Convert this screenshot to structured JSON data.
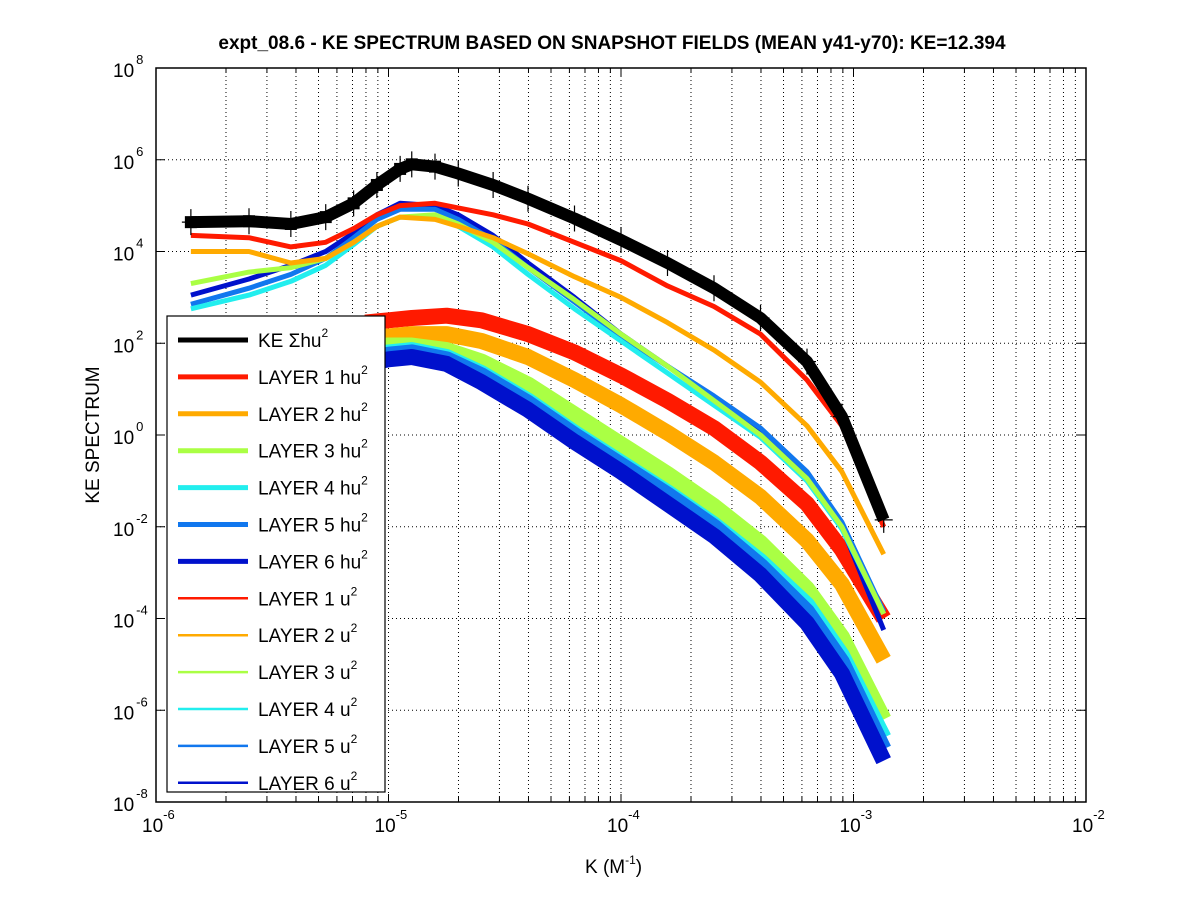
{
  "chart_data": {
    "type": "line",
    "title": "expt_08.6 - KE SPECTRUM BASED ON SNAPSHOT FIELDS (MEAN y41-y70): KE=12.394",
    "xlabel": "K  (M",
    "xlabel_sup": "-1",
    "xlabel_end": ")",
    "ylabel": "KE SPECTRUM",
    "xscale": "log",
    "yscale": "log",
    "xlim": [
      1e-06,
      0.01
    ],
    "ylim": [
      1e-08,
      100000000.0
    ],
    "grid": true,
    "legend_position": "lower-left",
    "x_ticks": [
      {
        "base": "10",
        "exp": "-6",
        "value": -6
      },
      {
        "base": "10",
        "exp": "-5",
        "value": -5
      },
      {
        "base": "10",
        "exp": "-4",
        "value": -4
      },
      {
        "base": "10",
        "exp": "-3",
        "value": -3
      },
      {
        "base": "10",
        "exp": "-2",
        "value": -2
      }
    ],
    "y_ticks": [
      {
        "base": "10",
        "exp": "-8",
        "value": -8
      },
      {
        "base": "10",
        "exp": "-6",
        "value": -6
      },
      {
        "base": "10",
        "exp": "-4",
        "value": -4
      },
      {
        "base": "10",
        "exp": "-2",
        "value": -2
      },
      {
        "base": "10",
        "exp": "0",
        "value": 0
      },
      {
        "base": "10",
        "exp": "2",
        "value": 2
      },
      {
        "base": "10",
        "exp": "4",
        "value": 4
      },
      {
        "base": "10",
        "exp": "6",
        "value": 6
      },
      {
        "base": "10",
        "exp": "8",
        "value": 8
      }
    ],
    "value_encoding": "points are [log10(K), log10(spectrum)]",
    "series": [
      {
        "name": "KE Σhu",
        "sup": "2",
        "color": "#000000",
        "width": "thick",
        "markers": "square+plus",
        "points": [
          [
            -5.85,
            4.64
          ],
          [
            -5.6,
            4.66
          ],
          [
            -5.42,
            4.6
          ],
          [
            -5.27,
            4.75
          ],
          [
            -5.15,
            5.05
          ],
          [
            -5.05,
            5.45
          ],
          [
            -4.95,
            5.8
          ],
          [
            -4.9,
            5.9
          ],
          [
            -4.8,
            5.85
          ],
          [
            -4.7,
            5.7
          ],
          [
            -4.55,
            5.45
          ],
          [
            -4.4,
            5.15
          ],
          [
            -4.2,
            4.72
          ],
          [
            -4.0,
            4.25
          ],
          [
            -3.8,
            3.75
          ],
          [
            -3.6,
            3.2
          ],
          [
            -3.4,
            2.55
          ],
          [
            -3.2,
            1.6
          ],
          [
            -3.05,
            0.4
          ],
          [
            -2.87,
            -1.85
          ]
        ]
      },
      {
        "name": "LAYER 1 hu",
        "sup": "2",
        "color": "#ff1a00",
        "width": "thick",
        "points": [
          [
            -5.85,
            4.35
          ],
          [
            -5.6,
            4.3
          ],
          [
            -5.42,
            4.1
          ],
          [
            -5.27,
            4.2
          ],
          [
            -5.15,
            4.5
          ],
          [
            -5.05,
            4.8
          ],
          [
            -4.95,
            5.0
          ],
          [
            -4.8,
            5.05
          ],
          [
            -4.7,
            4.95
          ],
          [
            -4.55,
            4.8
          ],
          [
            -4.4,
            4.6
          ],
          [
            -4.2,
            4.2
          ],
          [
            -4.0,
            3.8
          ],
          [
            -3.8,
            3.25
          ],
          [
            -3.6,
            2.8
          ],
          [
            -3.4,
            2.2
          ],
          [
            -3.2,
            1.2
          ],
          [
            -3.05,
            0.2
          ],
          [
            -2.87,
            -2.0
          ]
        ]
      },
      {
        "name": "LAYER 2 hu",
        "sup": "2",
        "color": "#ffaa00",
        "width": "thick",
        "points": [
          [
            -5.85,
            4.0
          ],
          [
            -5.6,
            4.0
          ],
          [
            -5.42,
            3.75
          ],
          [
            -5.27,
            3.85
          ],
          [
            -5.15,
            4.2
          ],
          [
            -5.05,
            4.55
          ],
          [
            -4.95,
            4.75
          ],
          [
            -4.8,
            4.7
          ],
          [
            -4.7,
            4.55
          ],
          [
            -4.55,
            4.3
          ],
          [
            -4.4,
            3.95
          ],
          [
            -4.2,
            3.45
          ],
          [
            -4.0,
            3.0
          ],
          [
            -3.8,
            2.45
          ],
          [
            -3.6,
            1.85
          ],
          [
            -3.4,
            1.15
          ],
          [
            -3.2,
            0.2
          ],
          [
            -3.05,
            -0.8
          ],
          [
            -2.87,
            -2.6
          ]
        ]
      },
      {
        "name": "LAYER 3 hu",
        "sup": "2",
        "color": "#aaff44",
        "width": "thick",
        "points": [
          [
            -5.85,
            3.3
          ],
          [
            -5.6,
            3.55
          ],
          [
            -5.42,
            3.65
          ],
          [
            -5.27,
            3.85
          ],
          [
            -5.15,
            4.2
          ],
          [
            -5.05,
            4.55
          ],
          [
            -4.95,
            4.75
          ],
          [
            -4.8,
            4.8
          ],
          [
            -4.7,
            4.6
          ],
          [
            -4.55,
            4.2
          ],
          [
            -4.4,
            3.65
          ],
          [
            -4.2,
            2.95
          ],
          [
            -4.0,
            2.2
          ],
          [
            -3.8,
            1.5
          ],
          [
            -3.6,
            0.75
          ],
          [
            -3.4,
            0.0
          ],
          [
            -3.2,
            -0.95
          ],
          [
            -3.05,
            -2.0
          ],
          [
            -2.87,
            -3.9
          ]
        ]
      },
      {
        "name": "LAYER 4 hu",
        "sup": "2",
        "color": "#22eeee",
        "width": "thick",
        "points": [
          [
            -5.85,
            2.75
          ],
          [
            -5.6,
            3.05
          ],
          [
            -5.42,
            3.35
          ],
          [
            -5.27,
            3.7
          ],
          [
            -5.15,
            4.15
          ],
          [
            -5.05,
            4.55
          ],
          [
            -4.95,
            4.75
          ],
          [
            -4.8,
            4.75
          ],
          [
            -4.7,
            4.55
          ],
          [
            -4.55,
            4.1
          ],
          [
            -4.4,
            3.5
          ],
          [
            -4.2,
            2.75
          ],
          [
            -4.0,
            2.05
          ],
          [
            -3.8,
            1.35
          ],
          [
            -3.6,
            0.65
          ],
          [
            -3.4,
            -0.05
          ],
          [
            -3.2,
            -1.0
          ],
          [
            -3.05,
            -2.05
          ],
          [
            -2.87,
            -3.9
          ]
        ]
      },
      {
        "name": "LAYER 5 hu",
        "sup": "2",
        "color": "#1177ee",
        "width": "thick",
        "points": [
          [
            -5.85,
            2.85
          ],
          [
            -5.6,
            3.2
          ],
          [
            -5.42,
            3.5
          ],
          [
            -5.27,
            3.85
          ],
          [
            -5.15,
            4.3
          ],
          [
            -5.05,
            4.7
          ],
          [
            -4.95,
            4.92
          ],
          [
            -4.8,
            4.92
          ],
          [
            -4.7,
            4.7
          ],
          [
            -4.55,
            4.25
          ],
          [
            -4.4,
            3.65
          ],
          [
            -4.2,
            2.9
          ],
          [
            -4.0,
            2.15
          ],
          [
            -3.8,
            1.5
          ],
          [
            -3.6,
            0.85
          ],
          [
            -3.4,
            0.15
          ],
          [
            -3.2,
            -0.8
          ],
          [
            -3.05,
            -1.9
          ],
          [
            -2.87,
            -3.85
          ]
        ]
      },
      {
        "name": "LAYER 6 hu",
        "sup": "2",
        "color": "#0011cc",
        "width": "thick",
        "points": [
          [
            -5.85,
            3.05
          ],
          [
            -5.6,
            3.4
          ],
          [
            -5.42,
            3.7
          ],
          [
            -5.27,
            4.0
          ],
          [
            -5.15,
            4.4
          ],
          [
            -5.05,
            4.8
          ],
          [
            -4.95,
            5.05
          ],
          [
            -4.8,
            5.0
          ],
          [
            -4.7,
            4.8
          ],
          [
            -4.55,
            4.35
          ],
          [
            -4.4,
            3.75
          ],
          [
            -4.2,
            3.0
          ],
          [
            -4.0,
            2.2
          ],
          [
            -3.8,
            1.5
          ],
          [
            -3.6,
            0.8
          ],
          [
            -3.4,
            0.05
          ],
          [
            -3.2,
            -0.9
          ],
          [
            -3.05,
            -2.0
          ],
          [
            -2.87,
            -4.25
          ]
        ]
      },
      {
        "name": "LAYER 1 u",
        "sup": "2",
        "color": "#ff1a00",
        "width": "thin",
        "band": true,
        "points": [
          [
            -5.1,
            2.45
          ],
          [
            -5.0,
            2.5
          ],
          [
            -4.9,
            2.55
          ],
          [
            -4.75,
            2.6
          ],
          [
            -4.6,
            2.5
          ],
          [
            -4.4,
            2.2
          ],
          [
            -4.2,
            1.8
          ],
          [
            -4.0,
            1.3
          ],
          [
            -3.8,
            0.75
          ],
          [
            -3.6,
            0.15
          ],
          [
            -3.4,
            -0.6
          ],
          [
            -3.2,
            -1.5
          ],
          [
            -3.05,
            -2.5
          ],
          [
            -2.87,
            -4.0
          ]
        ]
      },
      {
        "name": "LAYER 2 u",
        "sup": "2",
        "color": "#ffaa00",
        "width": "thin",
        "band": true,
        "points": [
          [
            -5.1,
            2.1
          ],
          [
            -5.0,
            2.15
          ],
          [
            -4.9,
            2.2
          ],
          [
            -4.75,
            2.2
          ],
          [
            -4.6,
            2.05
          ],
          [
            -4.4,
            1.7
          ],
          [
            -4.2,
            1.2
          ],
          [
            -4.0,
            0.65
          ],
          [
            -3.8,
            0.05
          ],
          [
            -3.6,
            -0.6
          ],
          [
            -3.4,
            -1.35
          ],
          [
            -3.2,
            -2.3
          ],
          [
            -3.05,
            -3.25
          ],
          [
            -2.87,
            -4.9
          ]
        ]
      },
      {
        "name": "LAYER 3 u",
        "sup": "2",
        "color": "#aaff44",
        "width": "thin",
        "band": true,
        "points": [
          [
            -5.1,
            1.9
          ],
          [
            -5.0,
            1.95
          ],
          [
            -4.9,
            1.95
          ],
          [
            -4.75,
            1.85
          ],
          [
            -4.6,
            1.6
          ],
          [
            -4.4,
            1.1
          ],
          [
            -4.2,
            0.45
          ],
          [
            -4.0,
            -0.2
          ],
          [
            -3.8,
            -0.85
          ],
          [
            -3.6,
            -1.55
          ],
          [
            -3.4,
            -2.35
          ],
          [
            -3.2,
            -3.35
          ],
          [
            -3.05,
            -4.4
          ],
          [
            -2.87,
            -6.2
          ]
        ]
      },
      {
        "name": "LAYER 4 u",
        "sup": "2",
        "color": "#22eeee",
        "width": "thin",
        "band": true,
        "points": [
          [
            -5.1,
            1.7
          ],
          [
            -5.0,
            1.8
          ],
          [
            -4.9,
            1.85
          ],
          [
            -4.75,
            1.7
          ],
          [
            -4.6,
            1.35
          ],
          [
            -4.4,
            0.75
          ],
          [
            -4.2,
            0.05
          ],
          [
            -4.0,
            -0.6
          ],
          [
            -3.8,
            -1.25
          ],
          [
            -3.6,
            -1.95
          ],
          [
            -3.4,
            -2.75
          ],
          [
            -3.2,
            -3.7
          ],
          [
            -3.05,
            -4.8
          ],
          [
            -2.87,
            -6.6
          ]
        ]
      },
      {
        "name": "LAYER 5 u",
        "sup": "2",
        "color": "#1177ee",
        "width": "thin",
        "band": true,
        "points": [
          [
            -5.1,
            1.65
          ],
          [
            -5.0,
            1.75
          ],
          [
            -4.9,
            1.8
          ],
          [
            -4.75,
            1.65
          ],
          [
            -4.6,
            1.3
          ],
          [
            -4.4,
            0.7
          ],
          [
            -4.2,
            0.0
          ],
          [
            -4.0,
            -0.65
          ],
          [
            -3.8,
            -1.3
          ],
          [
            -3.6,
            -2.0
          ],
          [
            -3.4,
            -2.85
          ],
          [
            -3.2,
            -3.85
          ],
          [
            -3.05,
            -4.95
          ],
          [
            -2.87,
            -6.85
          ]
        ]
      },
      {
        "name": "LAYER 6 u",
        "sup": "2",
        "color": "#0011cc",
        "width": "thin",
        "band": true,
        "points": [
          [
            -5.1,
            1.55
          ],
          [
            -5.0,
            1.65
          ],
          [
            -4.9,
            1.7
          ],
          [
            -4.75,
            1.55
          ],
          [
            -4.6,
            1.15
          ],
          [
            -4.4,
            0.55
          ],
          [
            -4.2,
            -0.15
          ],
          [
            -4.0,
            -0.8
          ],
          [
            -3.8,
            -1.5
          ],
          [
            -3.6,
            -2.2
          ],
          [
            -3.4,
            -3.05
          ],
          [
            -3.2,
            -4.1
          ],
          [
            -3.05,
            -5.2
          ],
          [
            -2.87,
            -7.1
          ]
        ]
      }
    ]
  }
}
